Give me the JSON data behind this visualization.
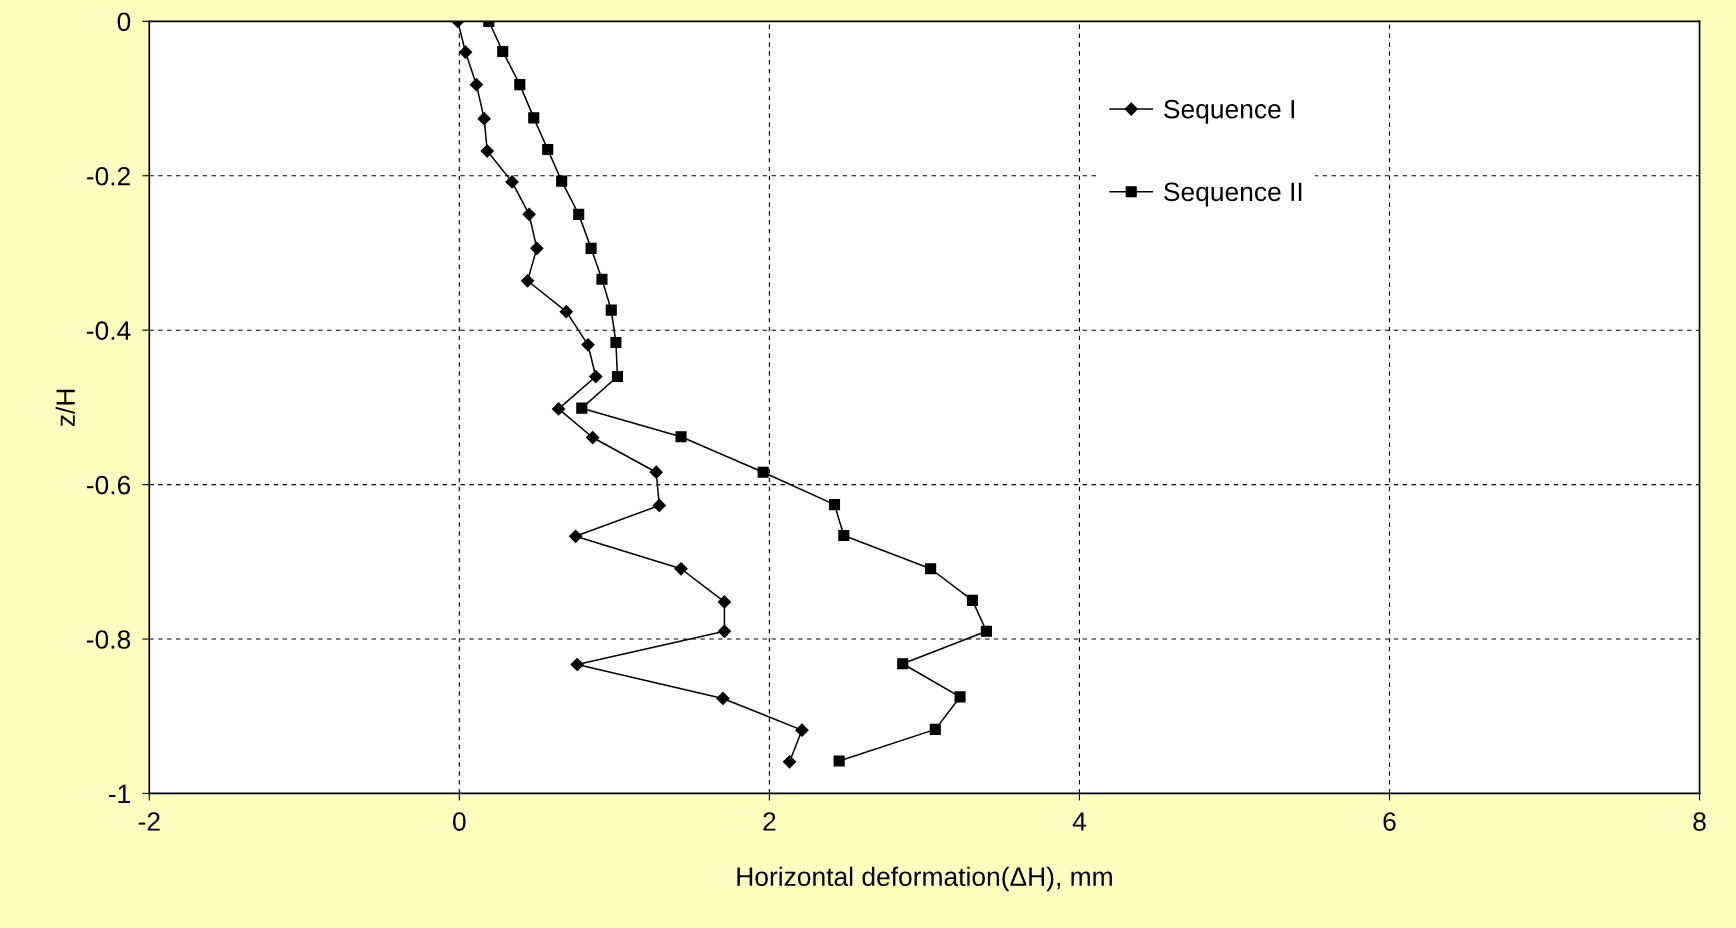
{
  "chart_data": {
    "type": "line",
    "xlabel": "Horizontal deformation(ΔH), mm",
    "ylabel": "z/H",
    "xlim": [
      -2,
      8
    ],
    "ylim": [
      -1,
      0
    ],
    "xticks": [
      -2,
      0,
      2,
      4,
      6,
      8
    ],
    "yticks": [
      -1,
      -0.8,
      -0.6,
      -0.4,
      -0.2,
      0
    ],
    "grid": true,
    "legend": "top right",
    "line_style": "solid",
    "series": [
      {
        "name": "Sequence I",
        "color": "#000000",
        "marker": "diamond",
        "x": [
          -0.01,
          0.04,
          0.11,
          0.16,
          0.18,
          0.34,
          0.45,
          0.5,
          0.44,
          0.69,
          0.83,
          0.88,
          0.64,
          0.86,
          1.27,
          1.29,
          0.75,
          1.43,
          1.71,
          1.71,
          0.76,
          1.7,
          2.21,
          2.13
        ],
        "values": [
          0,
          -0.04,
          -0.082,
          -0.126,
          -0.168,
          -0.208,
          -0.25,
          -0.294,
          -0.336,
          -0.376,
          -0.419,
          -0.46,
          -0.502,
          -0.539,
          -0.584,
          -0.627,
          -0.667,
          -0.709,
          -0.752,
          -0.79,
          -0.833,
          -0.877,
          -0.918,
          -0.959
        ]
      },
      {
        "name": "Sequence II",
        "color": "#000000",
        "marker": "square",
        "x": [
          0.19,
          0.28,
          0.39,
          0.48,
          0.57,
          0.66,
          0.77,
          0.85,
          0.92,
          0.98,
          1.01,
          1.02,
          0.79,
          1.43,
          1.96,
          2.42,
          2.48,
          3.04,
          3.31,
          3.4,
          2.86,
          3.23,
          3.07,
          2.45
        ],
        "values": [
          0,
          -0.039,
          -0.082,
          -0.125,
          -0.166,
          -0.207,
          -0.25,
          -0.294,
          -0.334,
          -0.374,
          -0.416,
          -0.46,
          -0.501,
          -0.538,
          -0.584,
          -0.626,
          -0.666,
          -0.709,
          -0.75,
          -0.79,
          -0.832,
          -0.875,
          -0.917,
          -0.958
        ]
      }
    ]
  }
}
